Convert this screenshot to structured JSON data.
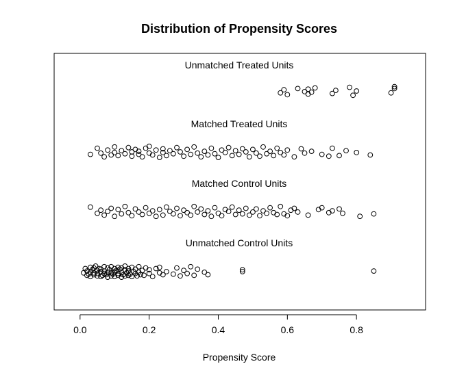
{
  "chart_data": {
    "type": "scatter",
    "title": "Distribution of Propensity Scores",
    "xlabel": "Propensity Score",
    "ylabel": "",
    "xlim": [
      -0.075,
      1.0
    ],
    "xticks": [
      "0.0",
      "0.2",
      "0.4",
      "0.6",
      "0.8"
    ],
    "grid": false,
    "point_style": "open-circle",
    "groups": [
      {
        "name": "Unmatched Treated Units",
        "x": [
          0.58,
          0.59,
          0.6,
          0.63,
          0.65,
          0.66,
          0.66,
          0.67,
          0.68,
          0.73,
          0.74,
          0.78,
          0.79,
          0.8,
          0.9,
          0.91,
          0.91
        ],
        "jitter": [
          0.3,
          -0.2,
          0.6,
          -0.4,
          0.1,
          -0.3,
          0.5,
          0.2,
          -0.5,
          0.4,
          -0.1,
          -0.6,
          0.7,
          0.0,
          0.3,
          -0.4,
          -0.7
        ]
      },
      {
        "name": "Matched Treated Units",
        "x": [
          0.03,
          0.05,
          0.06,
          0.07,
          0.08,
          0.09,
          0.1,
          0.1,
          0.11,
          0.12,
          0.13,
          0.14,
          0.15,
          0.15,
          0.16,
          0.17,
          0.17,
          0.18,
          0.19,
          0.2,
          0.2,
          0.21,
          0.22,
          0.23,
          0.24,
          0.24,
          0.25,
          0.26,
          0.27,
          0.28,
          0.29,
          0.3,
          0.31,
          0.32,
          0.33,
          0.34,
          0.35,
          0.36,
          0.37,
          0.38,
          0.39,
          0.4,
          0.41,
          0.42,
          0.43,
          0.44,
          0.45,
          0.46,
          0.47,
          0.48,
          0.49,
          0.5,
          0.51,
          0.52,
          0.53,
          0.54,
          0.55,
          0.56,
          0.57,
          0.58,
          0.59,
          0.6,
          0.62,
          0.64,
          0.65,
          0.67,
          0.7,
          0.72,
          0.73,
          0.75,
          0.77,
          0.8,
          0.84
        ],
        "jitter": [
          0.4,
          -0.6,
          0.2,
          0.8,
          -0.3,
          0.5,
          -0.8,
          0.1,
          0.6,
          -0.2,
          0.3,
          -0.7,
          0.7,
          0.0,
          -0.4,
          0.4,
          -0.1,
          0.8,
          -0.6,
          0.2,
          -0.9,
          0.5,
          -0.3,
          0.9,
          0.1,
          -0.5,
          0.6,
          -0.2,
          0.3,
          -0.7,
          0.0,
          0.7,
          -0.4,
          0.4,
          -0.8,
          0.2,
          0.8,
          -0.1,
          0.5,
          -0.6,
          0.3,
          0.9,
          -0.3,
          0.1,
          -0.7,
          0.6,
          -0.2,
          0.4,
          -0.5,
          0.0,
          0.8,
          -0.4,
          0.2,
          0.7,
          -0.8,
          0.3,
          -0.1,
          0.6,
          -0.6,
          0.1,
          0.5,
          -0.3,
          0.8,
          -0.5,
          0.2,
          -0.1,
          0.4,
          0.7,
          -0.6,
          0.6,
          -0.2,
          0.1,
          0.5
        ]
      },
      {
        "name": "Matched Control Units",
        "x": [
          0.03,
          0.05,
          0.06,
          0.07,
          0.08,
          0.09,
          0.1,
          0.11,
          0.12,
          0.13,
          0.14,
          0.15,
          0.16,
          0.17,
          0.18,
          0.19,
          0.2,
          0.21,
          0.22,
          0.23,
          0.24,
          0.25,
          0.26,
          0.27,
          0.28,
          0.29,
          0.3,
          0.31,
          0.32,
          0.33,
          0.34,
          0.35,
          0.36,
          0.37,
          0.38,
          0.39,
          0.4,
          0.41,
          0.42,
          0.43,
          0.44,
          0.45,
          0.46,
          0.47,
          0.48,
          0.49,
          0.5,
          0.51,
          0.52,
          0.53,
          0.54,
          0.55,
          0.56,
          0.57,
          0.58,
          0.59,
          0.6,
          0.61,
          0.62,
          0.63,
          0.66,
          0.69,
          0.7,
          0.72,
          0.73,
          0.75,
          0.76,
          0.81,
          0.85
        ],
        "jitter": [
          -0.7,
          0.3,
          -0.2,
          0.6,
          0.0,
          -0.5,
          0.8,
          -0.3,
          0.4,
          -0.8,
          0.2,
          0.7,
          -0.4,
          0.1,
          0.5,
          -0.6,
          0.3,
          -0.1,
          0.8,
          -0.3,
          0.6,
          -0.7,
          0.0,
          0.4,
          -0.5,
          0.7,
          -0.2,
          0.2,
          0.6,
          -0.8,
          0.1,
          -0.4,
          0.5,
          -0.1,
          0.8,
          -0.6,
          0.3,
          0.7,
          -0.3,
          0.0,
          -0.7,
          0.5,
          -0.2,
          0.4,
          -0.5,
          0.6,
          0.1,
          -0.4,
          0.7,
          -0.1,
          0.3,
          -0.6,
          0.2,
          0.5,
          -0.8,
          0.4,
          0.7,
          -0.2,
          -0.5,
          0.1,
          0.6,
          -0.3,
          -0.6,
          0.2,
          -0.1,
          -0.4,
          0.3,
          0.8,
          0.4
        ]
      },
      {
        "name": "Unmatched Control Units",
        "x": [
          0.01,
          0.015,
          0.02,
          0.02,
          0.025,
          0.03,
          0.03,
          0.03,
          0.035,
          0.04,
          0.04,
          0.04,
          0.045,
          0.05,
          0.05,
          0.05,
          0.055,
          0.06,
          0.06,
          0.06,
          0.065,
          0.07,
          0.07,
          0.07,
          0.075,
          0.08,
          0.08,
          0.08,
          0.085,
          0.09,
          0.09,
          0.09,
          0.095,
          0.1,
          0.1,
          0.1,
          0.105,
          0.11,
          0.11,
          0.11,
          0.115,
          0.12,
          0.12,
          0.12,
          0.125,
          0.13,
          0.13,
          0.13,
          0.135,
          0.14,
          0.14,
          0.14,
          0.145,
          0.15,
          0.15,
          0.155,
          0.16,
          0.16,
          0.165,
          0.17,
          0.17,
          0.175,
          0.18,
          0.185,
          0.19,
          0.2,
          0.2,
          0.21,
          0.22,
          0.23,
          0.23,
          0.24,
          0.25,
          0.27,
          0.28,
          0.29,
          0.3,
          0.31,
          0.32,
          0.33,
          0.34,
          0.36,
          0.37,
          0.47,
          0.47,
          0.85
        ],
        "jitter": [
          0.2,
          -0.5,
          0.6,
          -0.1,
          0.4,
          -0.7,
          0.1,
          0.8,
          -0.3,
          0.5,
          -0.6,
          0.2,
          -0.9,
          0.7,
          -0.2,
          0.3,
          -0.5,
          0.0,
          0.8,
          -0.4,
          0.6,
          -0.8,
          0.3,
          -0.1,
          0.5,
          0.9,
          -0.6,
          0.1,
          -0.3,
          0.7,
          -0.8,
          0.2,
          0.4,
          -0.5,
          0.0,
          0.8,
          -0.2,
          0.6,
          -0.7,
          0.3,
          -0.4,
          0.9,
          0.1,
          -0.6,
          0.5,
          -0.3,
          0.7,
          -0.9,
          0.2,
          -0.1,
          0.6,
          -0.5,
          0.4,
          0.8,
          -0.7,
          0.0,
          0.3,
          -0.4,
          0.7,
          -0.8,
          0.1,
          0.5,
          -0.2,
          0.6,
          -0.6,
          0.3,
          -0.3,
          0.8,
          -0.5,
          0.2,
          -0.7,
          0.5,
          0.0,
          0.4,
          -0.6,
          0.7,
          -0.2,
          0.3,
          -0.8,
          0.6,
          -0.4,
          0.1,
          0.5,
          0.0,
          -0.3,
          -0.1
        ]
      }
    ]
  }
}
